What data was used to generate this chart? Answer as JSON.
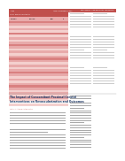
{
  "title": "The Impact of Concomitant Proximal Carotid\nInterventions on Revascularization and Outcomes",
  "journal_header": "Annals of Vascular Surgery",
  "page_bg": "#ffffff",
  "table_header_bg": "#c0504d",
  "salmon_light": "#f4d0ce",
  "salmon_mid": "#e8aaaa",
  "salmon_dark": "#d98080",
  "title_color": "#1f3864",
  "header_text_color": "#ffffff"
}
